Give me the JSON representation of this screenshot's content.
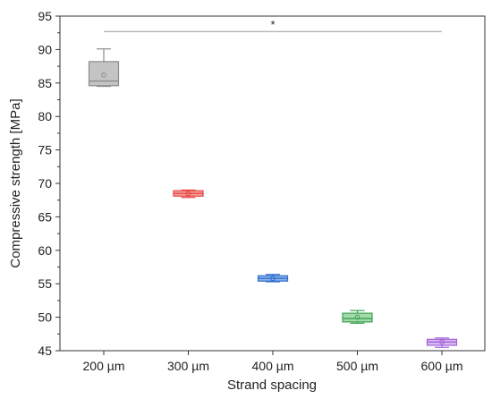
{
  "chart_data": {
    "type": "boxplot",
    "xlabel": "Strand spacing",
    "ylabel": "Compressive strength [MPa]",
    "ylim": [
      45,
      95
    ],
    "yticks": [
      45,
      50,
      55,
      60,
      65,
      70,
      75,
      80,
      85,
      90,
      95
    ],
    "categories": [
      "200 µm",
      "300 µm",
      "400 µm",
      "500 µm",
      "600 µm"
    ],
    "series": [
      {
        "category": "200 µm",
        "min": 84.5,
        "q1": 84.6,
        "median": 85.3,
        "q3": 88.2,
        "max": 90.1,
        "mean": 86.2,
        "color": "#8c8c8c",
        "fill": "#c4c4c4"
      },
      {
        "category": "300 µm",
        "min": 67.9,
        "q1": 68.1,
        "median": 68.5,
        "q3": 68.9,
        "max": 69.0,
        "mean": 68.5,
        "color": "#e8433f",
        "fill": "#f5a4a2"
      },
      {
        "category": "400 µm",
        "min": 55.3,
        "q1": 55.4,
        "median": 55.8,
        "q3": 56.2,
        "max": 56.4,
        "mean": 55.8,
        "color": "#2e6fce",
        "fill": "#8fb3ea"
      },
      {
        "category": "500 µm",
        "min": 49.1,
        "q1": 49.3,
        "median": 49.8,
        "q3": 50.6,
        "max": 51.0,
        "mean": 50.0,
        "color": "#3aa24e",
        "fill": "#a3d9ac"
      },
      {
        "category": "600 µm",
        "min": 45.5,
        "q1": 45.8,
        "median": 46.3,
        "q3": 46.7,
        "max": 46.9,
        "mean": 46.3,
        "color": "#a364d9",
        "fill": "#d7b8f0"
      }
    ],
    "significance": {
      "label": "*",
      "y": 92.7,
      "from": "200 µm",
      "to": "600 µm"
    },
    "grid": false
  }
}
